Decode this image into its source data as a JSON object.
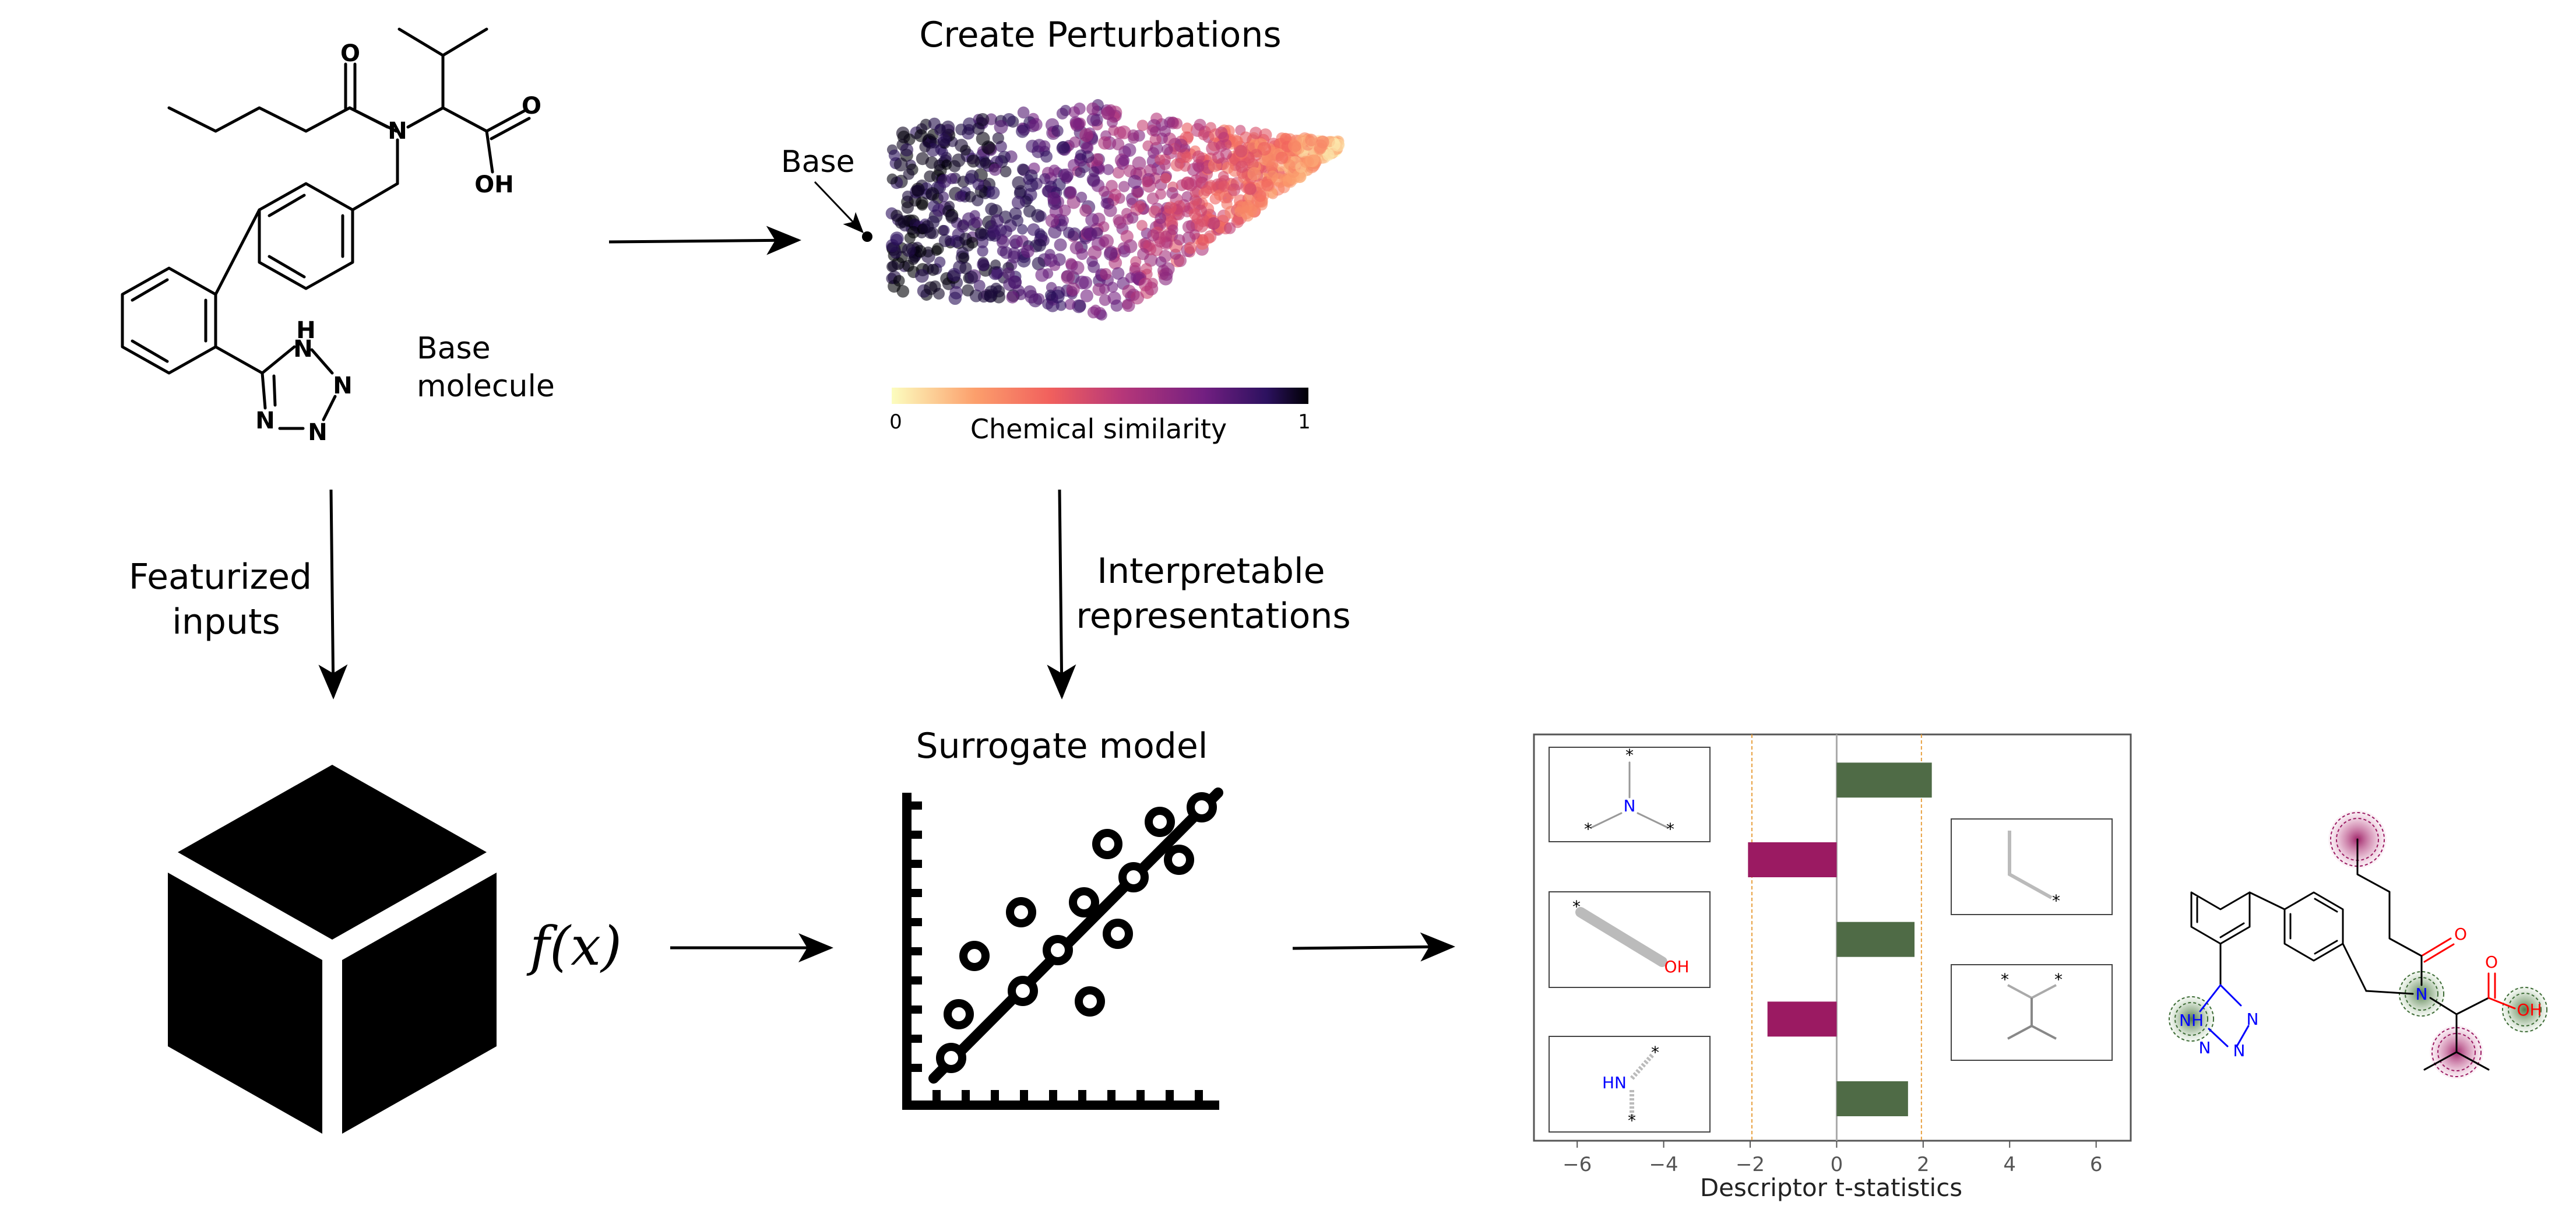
{
  "labels": {
    "base_molecule_line1": "Base",
    "base_molecule_line2": "molecule",
    "create_perturbations": "Create Perturbations",
    "base_point": "Base",
    "colorbar_min": "0",
    "colorbar_max": "1",
    "chemical_similarity": "Chemical similarity",
    "featurized_line1": "Featurized",
    "featurized_line2": "inputs",
    "interpretable_line1": "Interpretable",
    "interpretable_line2": "representations",
    "surrogate_model": "Surrogate model",
    "fx": "f(x)"
  },
  "atoms": {
    "o1": "O",
    "n": "N",
    "o2": "O",
    "oh": "OH",
    "h": "H",
    "n_top": "N",
    "n_mid": "N",
    "n_left": "N",
    "n_bot": "N"
  },
  "fragment_labels": {
    "n": "N",
    "oh": "OH",
    "hn": "HN",
    "star": "*"
  },
  "explained_atoms": {
    "nh": "NH",
    "n1": "N",
    "n2": "N",
    "n3": "N",
    "n_center": "N",
    "o_ketone": "O",
    "o_acid": "O",
    "oh": "OH"
  },
  "colors": {
    "positive_bar": "#4f6b46",
    "negative_bar": "#9b1a62",
    "threshold_line": "#e8a040",
    "zero_line": "#aaaaaa",
    "heteroatom_blue": "#0000ff",
    "heteroatom_red": "#ff0000"
  },
  "chart_data": {
    "type": "bar",
    "orientation": "horizontal",
    "xlabel": "Descriptor t-statistics",
    "xlim": [
      -7,
      6.8
    ],
    "xticks": [
      -6,
      -4,
      -2,
      0,
      2,
      4,
      6
    ],
    "xtick_labels": [
      "−6",
      "−4",
      "−2",
      "0",
      "2",
      "4",
      "6"
    ],
    "thresholds": [
      -1.96,
      1.96
    ],
    "values": [
      2.2,
      -2.05,
      1.8,
      -1.6,
      1.65
    ]
  }
}
